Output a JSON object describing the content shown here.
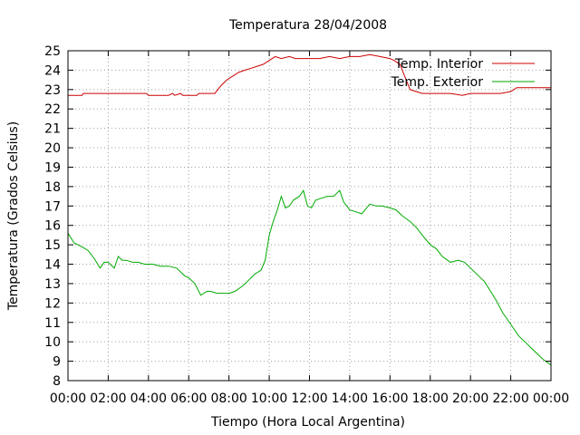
{
  "chart_data": {
    "type": "line",
    "title": "Temperatura 28/04/2008",
    "xlabel": "Tiempo (Hora Local Argentina)",
    "ylabel": "Temperatura (Grados Celsius)",
    "xlim": [
      0,
      24
    ],
    "ylim": [
      8,
      25
    ],
    "x_ticks": [
      "00:00",
      "02:00",
      "04:00",
      "06:00",
      "08:00",
      "10:00",
      "12:00",
      "14:00",
      "16:00",
      "18:00",
      "20:00",
      "22:00",
      "00:00"
    ],
    "y_ticks": [
      8,
      9,
      10,
      11,
      12,
      13,
      14,
      15,
      16,
      17,
      18,
      19,
      20,
      21,
      22,
      23,
      24,
      25
    ],
    "grid": true,
    "legend_position": "top-right",
    "series": [
      {
        "name": "Temp. Interior",
        "color": "#cc0000",
        "x": [
          0.0,
          0.7,
          0.75,
          1.5,
          2.5,
          3.5,
          3.9,
          4.0,
          5.0,
          5.2,
          5.3,
          5.6,
          5.7,
          6.0,
          6.4,
          6.5,
          7.0,
          7.3,
          7.6,
          7.9,
          8.2,
          8.5,
          8.8,
          9.1,
          9.4,
          9.7,
          10.0,
          10.3,
          10.6,
          11.0,
          11.3,
          11.7,
          12.0,
          12.5,
          13.0,
          13.5,
          14.0,
          14.5,
          15.0,
          15.5,
          16.0,
          16.2,
          16.5,
          16.8,
          17.0,
          17.3,
          17.6,
          18.0,
          19.0,
          19.6,
          20.0,
          21.0,
          21.5,
          22.0,
          22.3,
          23.0,
          24.0
        ],
        "y": [
          22.7,
          22.7,
          22.8,
          22.8,
          22.8,
          22.8,
          22.8,
          22.7,
          22.7,
          22.8,
          22.7,
          22.8,
          22.7,
          22.7,
          22.7,
          22.8,
          22.8,
          22.8,
          23.2,
          23.5,
          23.7,
          23.9,
          24.0,
          24.1,
          24.2,
          24.3,
          24.5,
          24.7,
          24.6,
          24.7,
          24.6,
          24.6,
          24.6,
          24.6,
          24.7,
          24.6,
          24.7,
          24.7,
          24.8,
          24.7,
          24.6,
          24.5,
          24.3,
          23.5,
          23.0,
          22.9,
          22.8,
          22.8,
          22.8,
          22.7,
          22.8,
          22.8,
          22.8,
          22.9,
          23.1,
          23.1,
          23.1
        ]
      },
      {
        "name": "Temp. Exterior",
        "color": "#00aa00",
        "x": [
          0.0,
          0.3,
          0.7,
          1.0,
          1.3,
          1.6,
          1.8,
          2.0,
          2.3,
          2.5,
          2.7,
          2.9,
          3.2,
          3.5,
          3.8,
          4.2,
          4.6,
          5.0,
          5.4,
          5.8,
          6.0,
          6.3,
          6.6,
          6.9,
          7.1,
          7.4,
          7.7,
          8.0,
          8.3,
          8.7,
          9.0,
          9.3,
          9.6,
          9.8,
          10.0,
          10.2,
          10.4,
          10.6,
          10.8,
          11.0,
          11.2,
          11.5,
          11.7,
          11.9,
          12.1,
          12.3,
          12.6,
          12.9,
          13.2,
          13.5,
          13.7,
          14.0,
          14.3,
          14.6,
          15.0,
          15.3,
          15.6,
          16.0,
          16.3,
          16.6,
          17.0,
          17.3,
          17.6,
          18.0,
          18.3,
          18.6,
          19.0,
          19.4,
          19.7,
          20.0,
          20.3,
          20.7,
          21.0,
          21.3,
          21.6,
          22.0,
          22.4,
          22.8,
          23.2,
          23.6,
          24.0
        ],
        "y": [
          15.6,
          15.1,
          14.9,
          14.7,
          14.3,
          13.8,
          14.1,
          14.1,
          13.8,
          14.4,
          14.2,
          14.2,
          14.1,
          14.1,
          14.0,
          14.0,
          13.9,
          13.9,
          13.8,
          13.4,
          13.3,
          13.0,
          12.4,
          12.6,
          12.6,
          12.5,
          12.5,
          12.5,
          12.6,
          12.9,
          13.2,
          13.5,
          13.7,
          14.2,
          15.5,
          16.2,
          16.8,
          17.5,
          16.9,
          17.0,
          17.3,
          17.5,
          17.8,
          17.0,
          16.9,
          17.3,
          17.4,
          17.5,
          17.5,
          17.8,
          17.2,
          16.8,
          16.7,
          16.6,
          17.1,
          17.0,
          17.0,
          16.9,
          16.8,
          16.5,
          16.2,
          15.9,
          15.5,
          15.0,
          14.8,
          14.4,
          14.1,
          14.2,
          14.1,
          13.8,
          13.5,
          13.1,
          12.6,
          12.1,
          11.5,
          10.9,
          10.3,
          9.9,
          9.5,
          9.1,
          8.8
        ]
      }
    ]
  }
}
